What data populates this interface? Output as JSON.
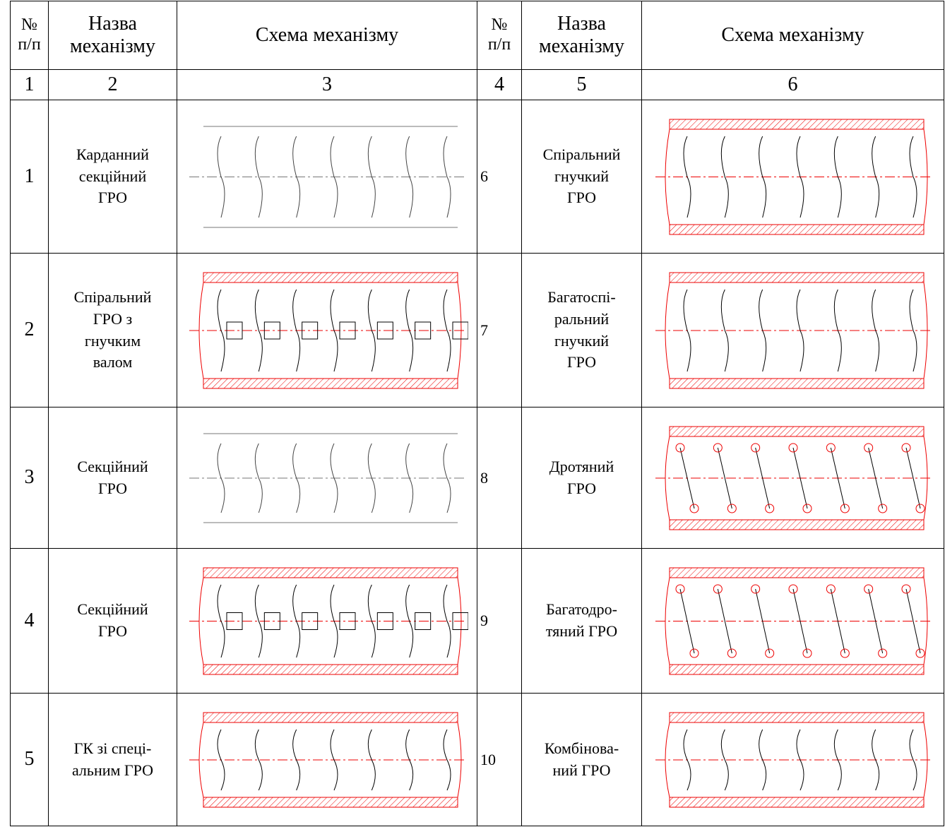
{
  "table": {
    "header": [
      [
        "№",
        "п/п"
      ],
      [
        "Назва",
        "механізму"
      ],
      [
        "Схема механізму"
      ],
      [
        "№",
        "п/п"
      ],
      [
        "Назва",
        "механізму"
      ],
      [
        "Схема механізму"
      ]
    ],
    "column_numbers": [
      "1",
      "2",
      "3",
      "4",
      "5",
      "6"
    ],
    "rows": [
      {
        "left_number": "1",
        "left_name": [
          "Карданний",
          "секційний",
          "ГРО"
        ],
        "right_number": "6",
        "right_name": [
          "Спіральний",
          "гнучкий",
          "ГРО"
        ]
      },
      {
        "left_number": "2",
        "left_name": [
          "Спіральний",
          "ГРО з",
          "гнучким",
          "валом"
        ],
        "right_number": "7",
        "right_name": [
          "Багатоспі-",
          "ральний",
          "гнучкий",
          "ГРО"
        ]
      },
      {
        "left_number": "3",
        "left_name": [
          "Секційний",
          "ГРО"
        ],
        "right_number": "8",
        "right_name": [
          "Дротяний",
          "ГРО"
        ]
      },
      {
        "left_number": "4",
        "left_name": [
          "Секційний",
          "ГРО"
        ],
        "right_number": "9",
        "right_name": [
          "Багатодро-",
          "тяний ГРО"
        ]
      },
      {
        "left_number": "5",
        "left_name": [
          "ГК зі спеці-",
          "альним ГРО"
        ],
        "right_number": "10",
        "right_name": [
          "Комбінова-",
          "ний ГРО"
        ]
      }
    ]
  }
}
